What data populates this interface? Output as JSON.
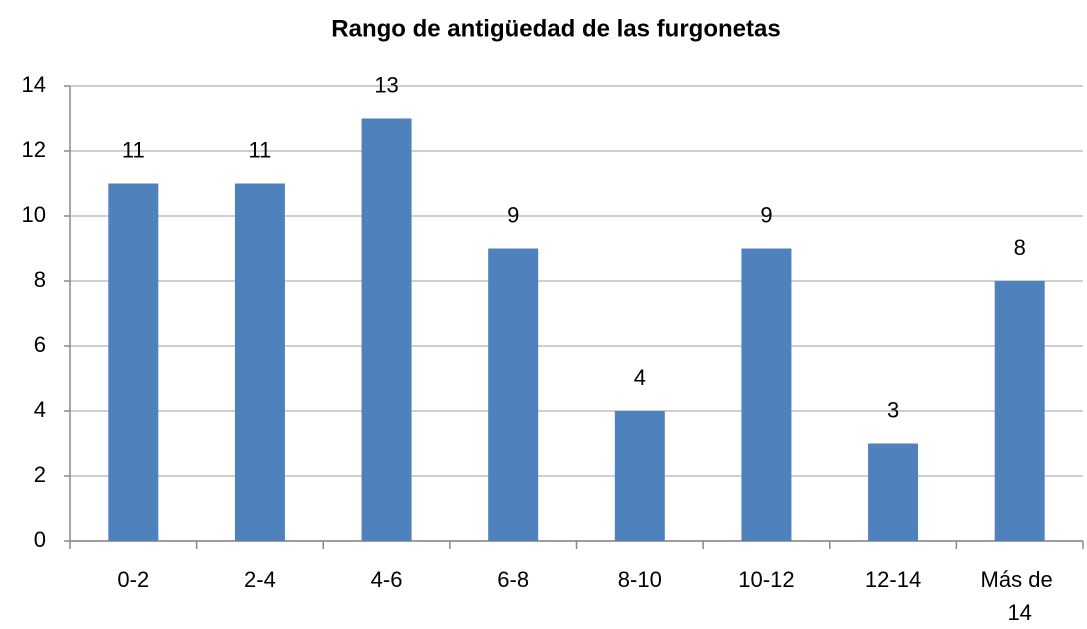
{
  "chart_data": {
    "type": "bar",
    "title": "Rango de antigüedad de las furgonetas",
    "categories": [
      "0-2",
      "2-4",
      "4-6",
      "6-8",
      "8-10",
      "10-12",
      "12-14",
      "Más de 14"
    ],
    "values": [
      11,
      11,
      13,
      9,
      4,
      9,
      3,
      8
    ],
    "color": "#4f81bd",
    "ylim": [
      0,
      14
    ],
    "yticks": [
      0,
      2,
      4,
      6,
      8,
      10,
      12,
      14
    ],
    "grid": true
  }
}
